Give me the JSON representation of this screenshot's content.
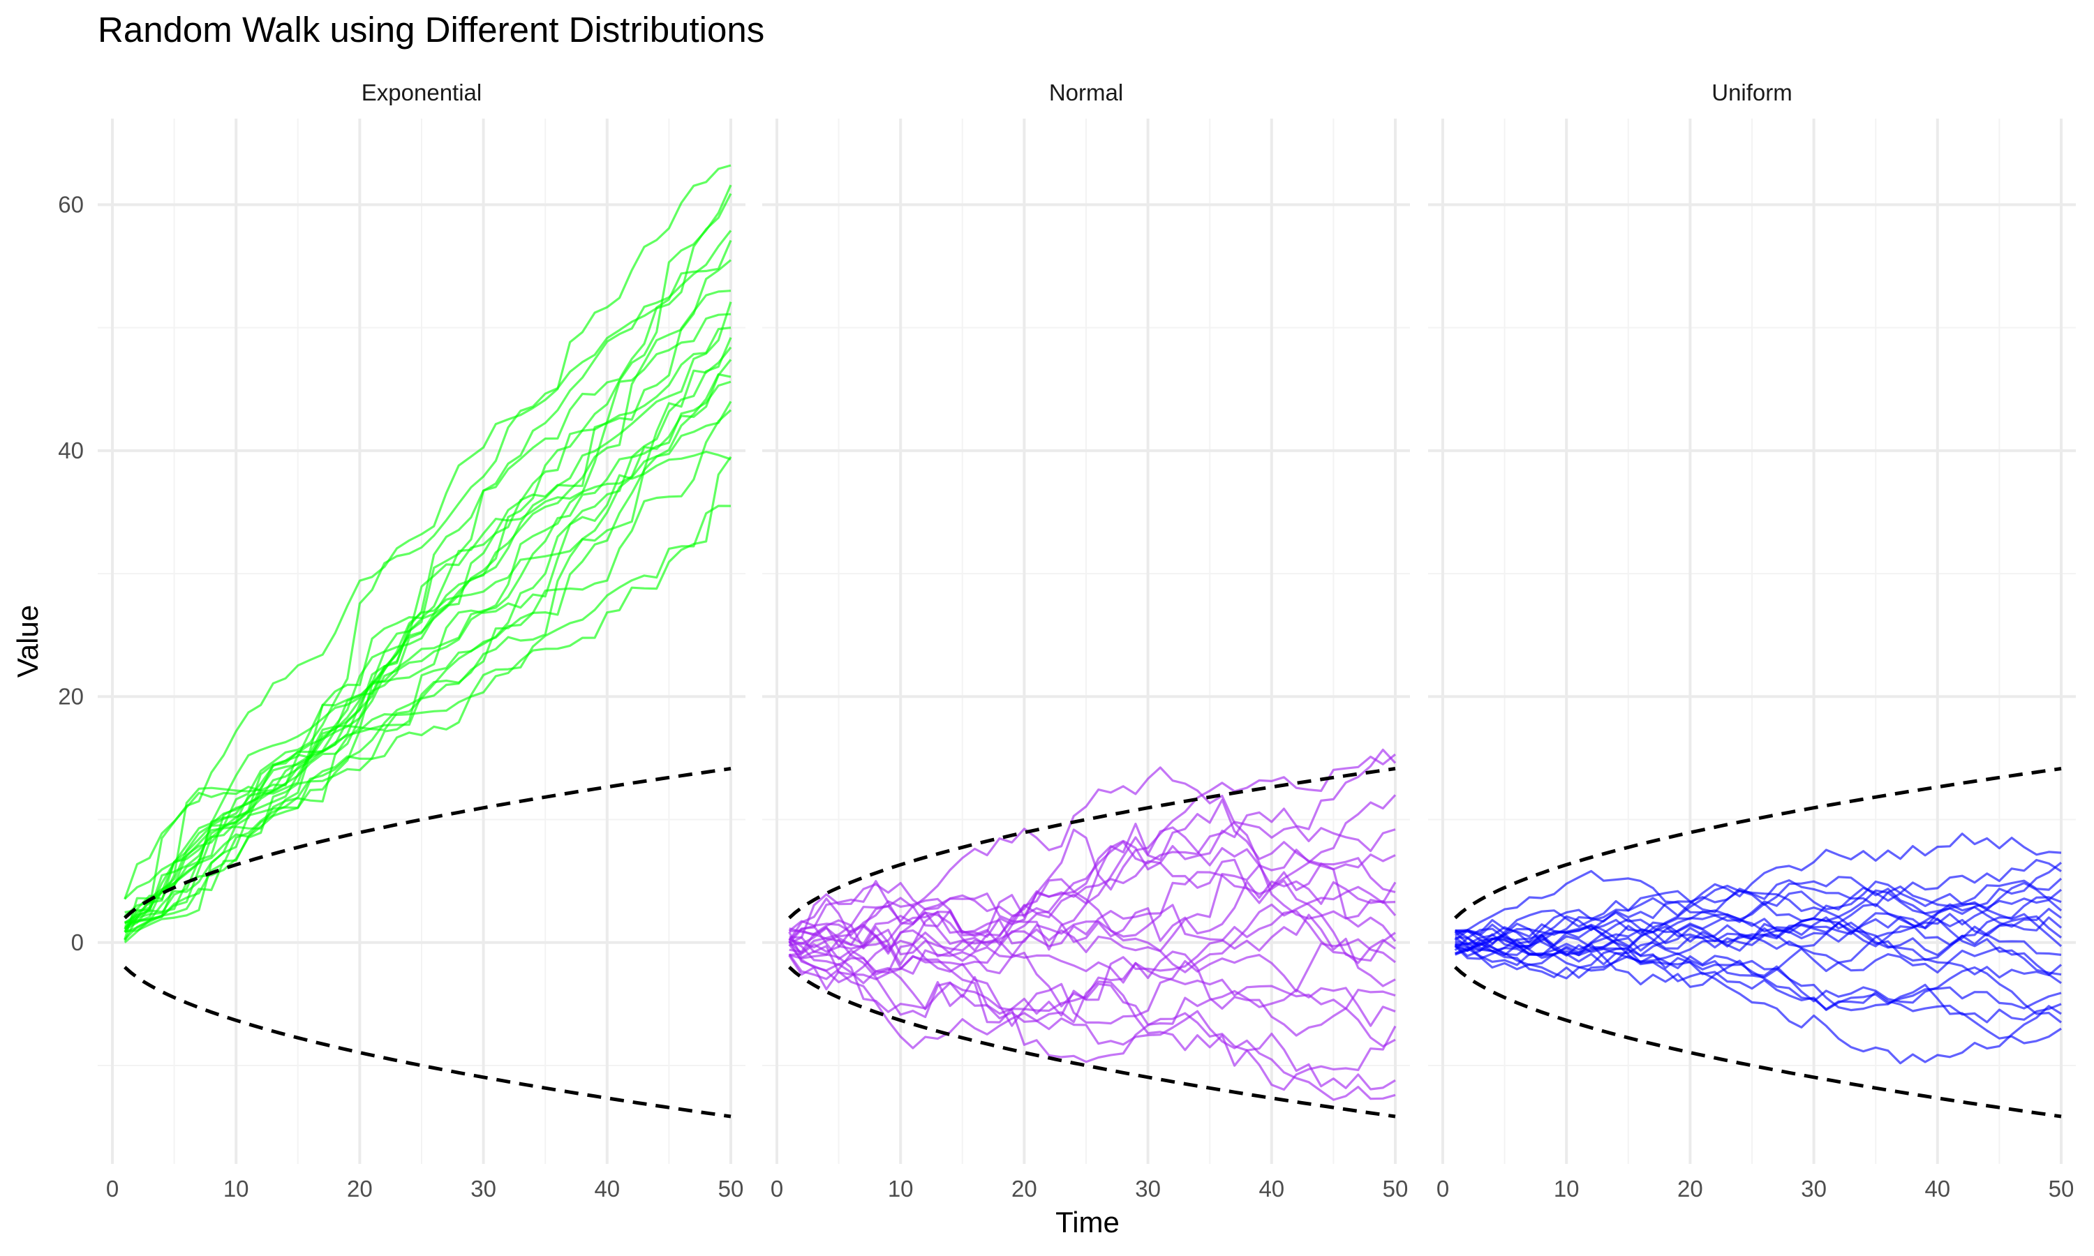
{
  "chart_data": {
    "type": "line",
    "title": "Random Walk using Different Distributions",
    "xlabel": "Time",
    "ylabel": "Value",
    "xlim": [
      0,
      50
    ],
    "ylim": [
      -18,
      67
    ],
    "x_ticks": [
      0,
      10,
      20,
      30,
      40,
      50
    ],
    "y_ticks": [
      0,
      20,
      40,
      60
    ],
    "grid": true,
    "legend": "none",
    "bound": {
      "formula": "±2·sqrt(t)",
      "x": [
        1,
        50
      ],
      "style": "dashed",
      "color": "#000000"
    },
    "panels": [
      {
        "name": "Exponential",
        "color": "#00ff00",
        "n_series": 20,
        "series_end_values": [
          63.2,
          61.6,
          60.9,
          57.9,
          57.1,
          55.5,
          53.0,
          52.1,
          51.1,
          50.0,
          49.2,
          48.4,
          47.4,
          46.0,
          45.6,
          44.0,
          43.3,
          39.5,
          39.3,
          35.5
        ]
      },
      {
        "name": "Normal",
        "color": "#a020f0",
        "n_series": 20,
        "series_end_values": [
          15.3,
          14.6,
          12.0,
          9.2,
          7.1,
          4.9,
          4.1,
          3.3,
          2.2,
          0.8,
          0.1,
          -0.5,
          -1.6,
          -3.0,
          -4.3,
          -5.6,
          -6.8,
          -7.9,
          -11.2,
          -12.4
        ]
      },
      {
        "name": "Uniform",
        "color": "#0000ff",
        "n_series": 20,
        "series_end_values": [
          7.3,
          6.5,
          5.8,
          5.2,
          4.3,
          3.3,
          2.6,
          2.0,
          1.2,
          0.4,
          -0.3,
          -1.0,
          -1.8,
          -2.6,
          -3.3,
          -4.1,
          -5.0,
          -5.8,
          -6.5,
          -7.0
        ]
      }
    ]
  }
}
